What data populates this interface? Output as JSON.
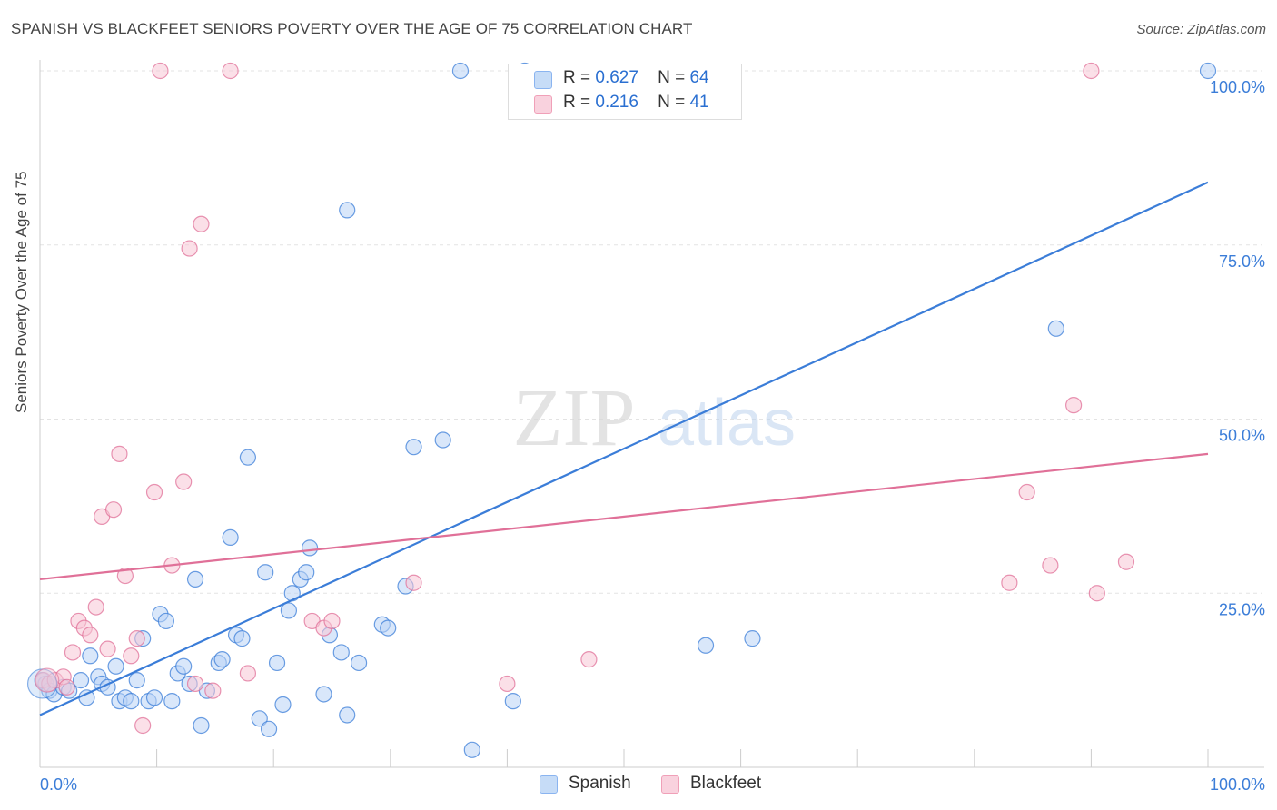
{
  "header": {
    "title": "SPANISH VS BLACKFEET SENIORS POVERTY OVER THE AGE OF 75 CORRELATION CHART",
    "source": "Source: ZipAtlas.com"
  },
  "watermark": {
    "zip": "ZIP",
    "atlas": "atlas"
  },
  "legend": {
    "rows": [
      {
        "r_label": "R =",
        "r_value": "0.627",
        "n_label": "N =",
        "n_value": "64",
        "color": "#8ab4f0",
        "fill": "#c6dcf7"
      },
      {
        "r_label": "R =",
        "r_value": "0.216",
        "n_label": "N =",
        "n_value": "41",
        "color": "#f0a0b8",
        "fill": "#f9d2de"
      }
    ]
  },
  "chart_data": {
    "type": "scatter",
    "ylabel": "Seniors Poverty Over the Age of 75",
    "xlim": [
      0,
      100
    ],
    "ylim": [
      0,
      100
    ],
    "x_tick_labels": {
      "0": "0.0%",
      "100": "100.0%"
    },
    "y_tick_labels": {
      "25": "25.0%",
      "50": "50.0%",
      "75": "75.0%",
      "100": "100.0%"
    },
    "grid": true,
    "series": [
      {
        "name": "Spanish",
        "color": "#3b7dd8",
        "fill": "#b9d3f5",
        "trend": {
          "x": [
            0,
            100
          ],
          "y": [
            7.5,
            84
          ]
        },
        "points": [
          [
            0.2,
            12.5
          ],
          [
            0.5,
            12.0
          ],
          [
            0.8,
            11.0
          ],
          [
            1.2,
            10.5
          ],
          [
            2.0,
            11.5
          ],
          [
            2.5,
            11.0
          ],
          [
            3.5,
            12.5
          ],
          [
            4.0,
            10.0
          ],
          [
            4.3,
            16.0
          ],
          [
            5.0,
            13.0
          ],
          [
            5.3,
            12.0
          ],
          [
            5.8,
            11.5
          ],
          [
            6.5,
            14.5
          ],
          [
            6.8,
            9.5
          ],
          [
            7.3,
            10.0
          ],
          [
            7.8,
            9.5
          ],
          [
            8.3,
            12.5
          ],
          [
            8.8,
            18.5
          ],
          [
            9.3,
            9.5
          ],
          [
            9.8,
            10.0
          ],
          [
            10.3,
            22.0
          ],
          [
            10.8,
            21.0
          ],
          [
            11.3,
            9.5
          ],
          [
            11.8,
            13.5
          ],
          [
            12.3,
            14.5
          ],
          [
            12.8,
            12.0
          ],
          [
            13.3,
            27.0
          ],
          [
            13.8,
            6.0
          ],
          [
            14.3,
            11.0
          ],
          [
            15.3,
            15.0
          ],
          [
            15.6,
            15.5
          ],
          [
            16.3,
            33.0
          ],
          [
            16.8,
            19.0
          ],
          [
            17.3,
            18.5
          ],
          [
            17.8,
            44.5
          ],
          [
            18.8,
            7.0
          ],
          [
            19.3,
            28.0
          ],
          [
            19.6,
            5.5
          ],
          [
            20.3,
            15.0
          ],
          [
            20.8,
            9.0
          ],
          [
            21.3,
            22.5
          ],
          [
            21.6,
            25.0
          ],
          [
            22.3,
            27.0
          ],
          [
            22.8,
            28.0
          ],
          [
            23.1,
            31.5
          ],
          [
            24.3,
            10.5
          ],
          [
            24.8,
            19.0
          ],
          [
            25.8,
            16.5
          ],
          [
            26.3,
            80.0
          ],
          [
            27.3,
            15.0
          ],
          [
            26.3,
            7.5
          ],
          [
            29.3,
            20.5
          ],
          [
            29.8,
            20.0
          ],
          [
            31.3,
            26.0
          ],
          [
            32.0,
            46.0
          ],
          [
            34.5,
            47.0
          ],
          [
            36.0,
            100.0
          ],
          [
            37.0,
            2.5
          ],
          [
            40.5,
            9.5
          ],
          [
            41.5,
            100.0
          ],
          [
            57.0,
            17.5
          ],
          [
            61.0,
            18.5
          ],
          [
            87.0,
            63.0
          ],
          [
            100.0,
            100.0
          ]
        ]
      },
      {
        "name": "Blackfeet",
        "color": "#e07098",
        "fill": "#f7c6d5",
        "trend": {
          "x": [
            0,
            100
          ],
          "y": [
            27,
            45
          ]
        },
        "points": [
          [
            0.3,
            12.5
          ],
          [
            0.8,
            12.0
          ],
          [
            1.3,
            12.5
          ],
          [
            2.0,
            13.0
          ],
          [
            2.3,
            11.5
          ],
          [
            2.8,
            16.5
          ],
          [
            3.3,
            21.0
          ],
          [
            3.8,
            20.0
          ],
          [
            4.3,
            19.0
          ],
          [
            4.8,
            23.0
          ],
          [
            5.8,
            17.0
          ],
          [
            5.3,
            36.0
          ],
          [
            6.3,
            37.0
          ],
          [
            6.8,
            45.0
          ],
          [
            7.3,
            27.5
          ],
          [
            7.8,
            16.0
          ],
          [
            8.3,
            18.5
          ],
          [
            8.8,
            6.0
          ],
          [
            9.8,
            39.5
          ],
          [
            10.3,
            100.0
          ],
          [
            11.3,
            29.0
          ],
          [
            12.3,
            41.0
          ],
          [
            12.8,
            74.5
          ],
          [
            13.3,
            12.0
          ],
          [
            13.8,
            78.0
          ],
          [
            14.8,
            11.0
          ],
          [
            16.3,
            100.0
          ],
          [
            17.8,
            13.5
          ],
          [
            23.3,
            21.0
          ],
          [
            24.3,
            20.0
          ],
          [
            25.0,
            21.0
          ],
          [
            32.0,
            26.5
          ],
          [
            40.0,
            12.0
          ],
          [
            47.0,
            15.5
          ],
          [
            83.0,
            26.5
          ],
          [
            84.5,
            39.5
          ],
          [
            86.5,
            29.0
          ],
          [
            88.5,
            52.0
          ],
          [
            90.0,
            100.0
          ],
          [
            90.5,
            25.0
          ],
          [
            93.0,
            29.5
          ]
        ]
      }
    ]
  }
}
